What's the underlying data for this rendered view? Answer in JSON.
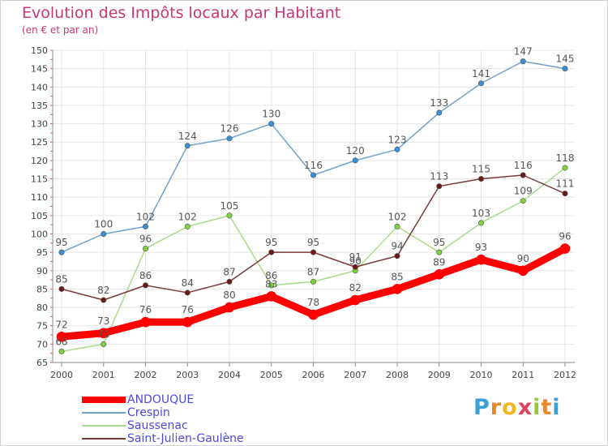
{
  "header": {
    "title": "Evolution des Impôts locaux par Habitant",
    "subtitle": "(en € et par an)"
  },
  "brand": {
    "letters": [
      "P",
      "r",
      "o",
      "x",
      "i",
      "t",
      "i"
    ],
    "colors": [
      "#3b9fd8",
      "#e8862d",
      "#f1b81e",
      "#d9465c",
      "#9ac83c",
      "#e8862d",
      "#3b9fd8"
    ]
  },
  "chart_data": {
    "type": "line",
    "title": "Evolution des Impôts locaux par Habitant",
    "subtitle": "(en € et par an)",
    "xlabel": "",
    "ylabel": "",
    "x": [
      "2000",
      "2001",
      "2002",
      "2003",
      "2004",
      "2005",
      "2006",
      "2007",
      "2008",
      "2009",
      "2010",
      "2011",
      "2012"
    ],
    "ylim": [
      65,
      150
    ],
    "yticks": [
      65,
      70,
      75,
      80,
      85,
      90,
      95,
      100,
      105,
      110,
      115,
      120,
      125,
      130,
      135,
      140,
      145,
      150
    ],
    "grid": true,
    "legend_position": "bottom-left",
    "series": [
      {
        "name": "ANDOUQUE",
        "color": "#ff0000",
        "point_color": "#ff0000",
        "label_color": "#555555",
        "width": 9,
        "marker": 6,
        "values": [
          72,
          73,
          76,
          76,
          80,
          83,
          78,
          82,
          85,
          89,
          93,
          90,
          96
        ]
      },
      {
        "name": "Crespin",
        "color": "#6fa3cf",
        "point_color": "#3a8fd6",
        "label_color": "#555555",
        "width": 1.5,
        "marker": 3.2,
        "values": [
          95,
          100,
          102,
          124,
          126,
          130,
          116,
          120,
          123,
          133,
          141,
          147,
          145
        ]
      },
      {
        "name": "Saussenac",
        "color": "#a9dc8a",
        "point_color": "#7ed33b",
        "label_color": "#555555",
        "width": 1.5,
        "marker": 3.2,
        "values": [
          68,
          70,
          96,
          102,
          105,
          86,
          87,
          90,
          102,
          95,
          103,
          109,
          118
        ]
      },
      {
        "name": "Saint-Julien-Gaulène",
        "color": "#7a3a3a",
        "point_color": "#6b1a1a",
        "label_color": "#555555",
        "width": 1.5,
        "marker": 3.2,
        "values": [
          85,
          82,
          86,
          84,
          87,
          95,
          95,
          91,
          94,
          113,
          115,
          116,
          111
        ]
      }
    ]
  }
}
